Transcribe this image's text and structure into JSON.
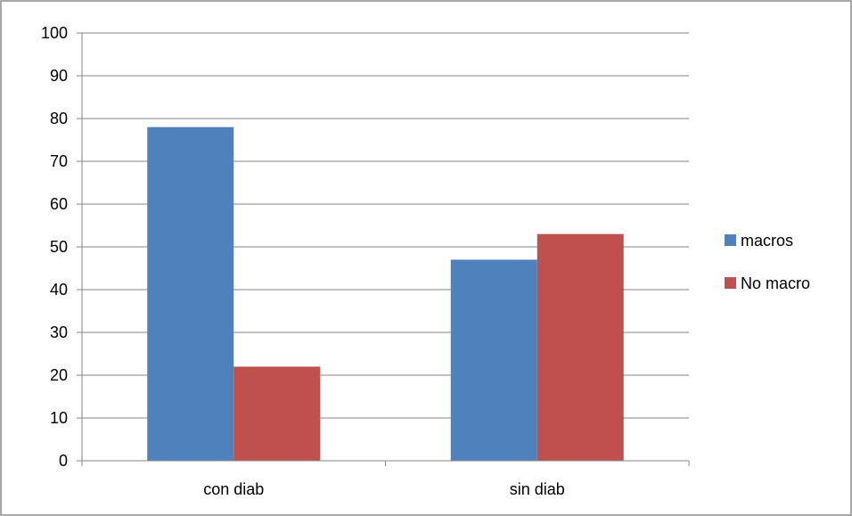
{
  "chart_data": {
    "type": "bar",
    "categories": [
      "con diab",
      "sin diab"
    ],
    "series": [
      {
        "name": "macros",
        "values": [
          78,
          47
        ],
        "color": "#4F81BD"
      },
      {
        "name": "No macro",
        "values": [
          22,
          53
        ],
        "color": "#C0504D"
      }
    ],
    "title": "",
    "xlabel": "",
    "ylabel": "",
    "ylim": [
      0,
      100
    ],
    "yticks": [
      0,
      10,
      20,
      30,
      40,
      50,
      60,
      70,
      80,
      90,
      100
    ],
    "grid": true,
    "legend": "right"
  }
}
